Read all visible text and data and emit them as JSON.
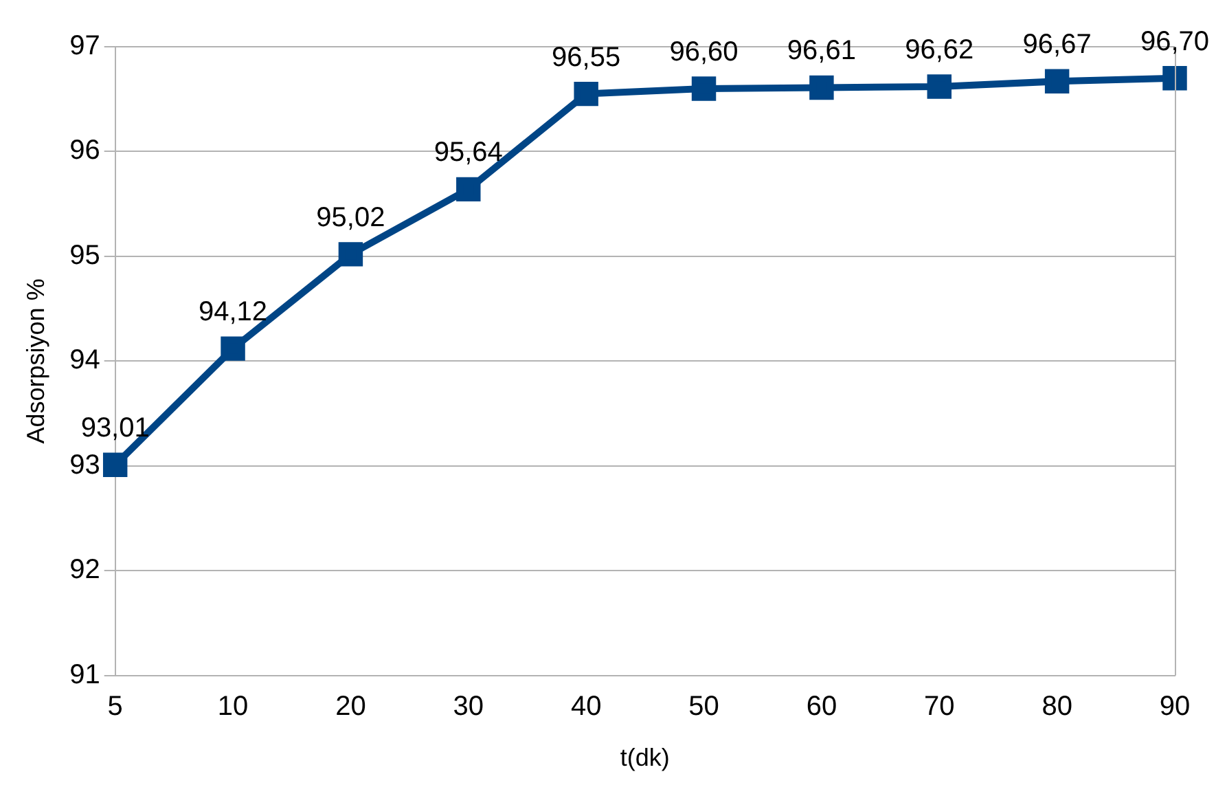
{
  "chart_data": {
    "type": "line",
    "xlabel": "t(dk)",
    "ylabel": "Adsorpsiyon %",
    "categories": [
      "5",
      "10",
      "20",
      "30",
      "40",
      "50",
      "60",
      "70",
      "80",
      "90"
    ],
    "series": [
      {
        "color": "#004586",
        "values": [
          93.01,
          94.12,
          95.02,
          95.64,
          96.55,
          96.6,
          96.61,
          96.62,
          96.67,
          96.7
        ],
        "value_labels": [
          "93,01",
          "94,12",
          "95,02",
          "95,64",
          "96,55",
          "96,60",
          "96,61",
          "96,62",
          "96,67",
          "96,70"
        ]
      }
    ],
    "ylim": [
      91,
      97
    ],
    "yticks": [
      91,
      92,
      93,
      94,
      95,
      96,
      97
    ],
    "grid": "y",
    "legend": false,
    "marker": "square",
    "line_style": "solid"
  }
}
